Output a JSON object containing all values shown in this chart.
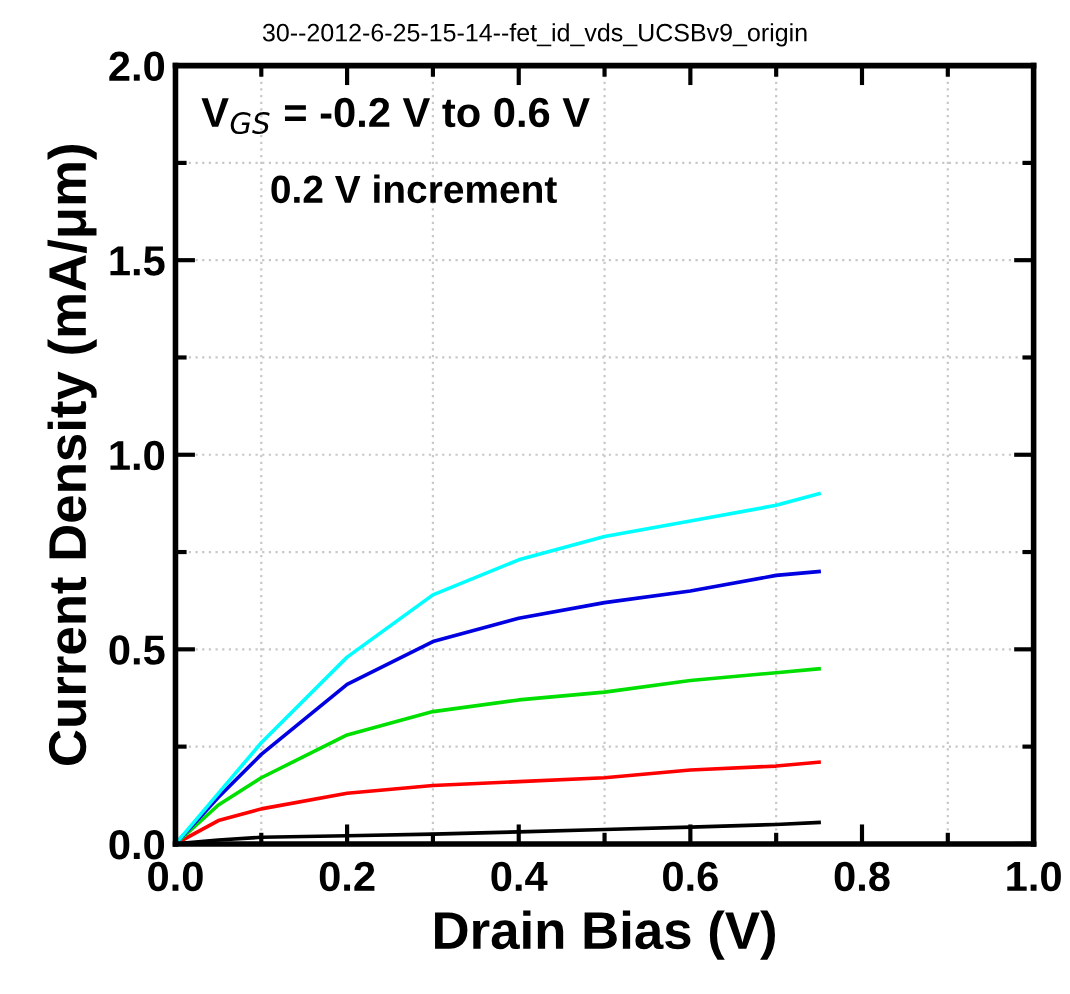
{
  "chart_data": {
    "type": "line",
    "title": "30--2012-6-25-15-14--fet_id_vds_UCSBv9_origin",
    "xlabel": "Drain Bias (V)",
    "ylabel": "Current Density (mA/μm)",
    "annotations": [
      "V$_{GS}$ = -0.2 V to 0.6 V",
      "0.2 V increment"
    ],
    "x": [
      0,
      0.05,
      0.1,
      0.2,
      0.3,
      0.4,
      0.5,
      0.6,
      0.7,
      0.75
    ],
    "series": [
      {
        "color": "#000000",
        "values": [
          0,
          0.01,
          0.017,
          0.021,
          0.025,
          0.031,
          0.037,
          0.043,
          0.05,
          0.055
        ]
      },
      {
        "color": "#ff0000",
        "values": [
          0,
          0.06,
          0.09,
          0.13,
          0.15,
          0.16,
          0.17,
          0.19,
          0.2,
          0.21
        ]
      },
      {
        "color": "#00e000",
        "values": [
          0,
          0.1,
          0.17,
          0.28,
          0.34,
          0.37,
          0.39,
          0.42,
          0.44,
          0.45
        ]
      },
      {
        "color": "#0000e0",
        "values": [
          0,
          0.12,
          0.23,
          0.41,
          0.52,
          0.58,
          0.62,
          0.65,
          0.69,
          0.7
        ]
      },
      {
        "color": "#00ffff",
        "values": [
          0,
          0.13,
          0.26,
          0.48,
          0.64,
          0.73,
          0.79,
          0.83,
          0.87,
          0.9
        ]
      }
    ],
    "xlim": [
      0,
      1.0
    ],
    "ylim": [
      0,
      2.0
    ],
    "xticks": [
      {
        "value": 0,
        "label": "0.0"
      },
      0.2,
      0.4,
      0.6,
      0.8,
      {
        "value": 1.0,
        "label": "1.0"
      }
    ],
    "yticks": [
      {
        "value": 0,
        "label": "0.0"
      },
      0.5,
      {
        "value": 1.0,
        "label": "1.0"
      },
      1.5,
      {
        "value": 2.0,
        "label": "2.0"
      }
    ],
    "grid": true,
    "marker": "none",
    "line_style": "solid"
  }
}
